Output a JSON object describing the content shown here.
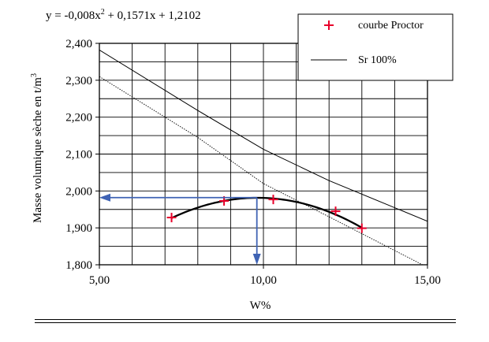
{
  "chart_data": {
    "type": "scatter",
    "equation": "y = -0,008x² + 0,1571x + 1,2102",
    "equation_parts": {
      "a": "y = -0,008x",
      "sup": "2",
      "b": " + 0,1571x + 1,2102"
    },
    "xlabel": "W%",
    "ylabel": "Masse volumique sèche en t/m",
    "ylabel_sup": "3",
    "xlim": [
      5,
      15
    ],
    "ylim": [
      1.8,
      2.4
    ],
    "x_ticks": [
      5,
      10,
      15
    ],
    "x_tick_labels": [
      "5,00",
      "10,00",
      "15,00"
    ],
    "x_minor_step": 1,
    "y_ticks": [
      1.8,
      1.9,
      2.0,
      2.1,
      2.2,
      2.3,
      2.4
    ],
    "y_tick_labels": [
      "1,800",
      "1,900",
      "2,000",
      "2,100",
      "2,200",
      "2,300",
      "2,400"
    ],
    "y_minor_step": 0.05,
    "grid": true,
    "legend": {
      "position": "top-right",
      "entries": [
        {
          "label": "courbe Proctor",
          "marker": "+",
          "color": "#e8002a"
        },
        {
          "label": "Sr 100%",
          "marker": "line",
          "color": "#000000"
        }
      ]
    },
    "series": [
      {
        "name": "courbe Proctor",
        "kind": "points",
        "color": "#e8002a",
        "x": [
          7.2,
          8.8,
          10.3,
          12.2,
          13.0
        ],
        "y": [
          1.928,
          1.973,
          1.977,
          1.945,
          1.899
        ]
      },
      {
        "kind": "trend",
        "color": "#000000",
        "coefficients": [
          -0.008,
          0.1571,
          1.2102
        ],
        "x_range": [
          7.2,
          13.0
        ]
      },
      {
        "name": "Sr 100%",
        "kind": "line",
        "color": "#000000",
        "x": [
          5,
          8,
          10,
          12,
          15
        ],
        "y": [
          2.382,
          2.218,
          2.113,
          2.028,
          1.918
        ]
      },
      {
        "kind": "dotted-line",
        "color": "#000000",
        "x": [
          5,
          8,
          10,
          12,
          15
        ],
        "y": [
          2.31,
          2.145,
          2.02,
          1.93,
          1.793
        ]
      }
    ],
    "annotation": {
      "color": "#3f63b4",
      "optimum_x": 9.8,
      "optimum_y": 1.982
    }
  }
}
